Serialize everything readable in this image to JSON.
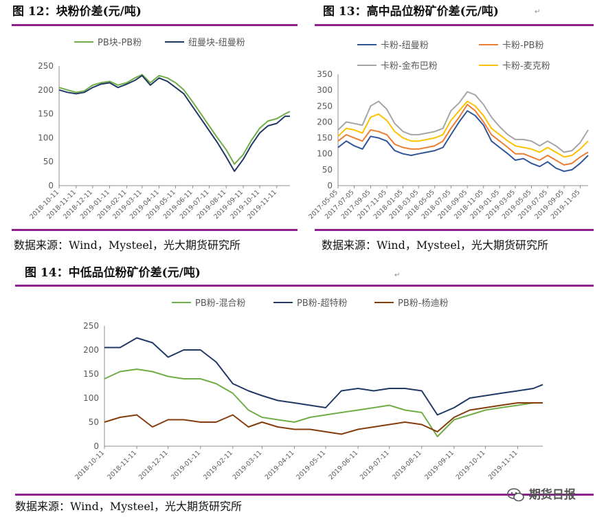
{
  "figures": {
    "fig12": {
      "title": "图 12：块粉价差(元/吨)"
    },
    "fig13": {
      "title": "图 13：高中品位粉矿价差(元/吨)"
    },
    "fig14": {
      "title": "图 14：中低品位粉矿价差(元/吨)"
    }
  },
  "sources": {
    "left": "数据来源：Wind，Mysteel，光大期货研究所",
    "right": "数据来源：Wind，Mysteel，光大期货研究所",
    "bottom": "数据来源：Wind，Mysteel，光大期货研究所"
  },
  "watermark": {
    "text": "期货日报",
    "icon": "wechat-icon"
  },
  "colors": {
    "rule": "#8e1f8e"
  },
  "chart_data": [
    {
      "id": "fig12",
      "type": "line",
      "title": "",
      "xlabel": "",
      "ylabel": "",
      "ylim": [
        0,
        250
      ],
      "yticks": [
        0,
        50,
        100,
        150,
        200,
        250
      ],
      "grid": false,
      "legend": "top",
      "xticks": [
        "2018-10-11",
        "2018-11-11",
        "2018-12-11",
        "2019-01-11",
        "2019-02-11",
        "2019-03-11",
        "2019-04-11",
        "2019-05-11",
        "2019-06-11",
        "2019-07-11",
        "2019-08-11",
        "2019-09-11",
        "2019-10-11",
        "2019-11-11"
      ],
      "x": [
        "2018-10-11",
        "2018-10-26",
        "2018-11-11",
        "2018-11-26",
        "2018-12-11",
        "2018-12-26",
        "2019-01-11",
        "2019-01-26",
        "2019-02-11",
        "2019-02-26",
        "2019-03-11",
        "2019-03-26",
        "2019-04-11",
        "2019-04-26",
        "2019-05-11",
        "2019-05-26",
        "2019-06-11",
        "2019-06-26",
        "2019-07-11",
        "2019-07-26",
        "2019-08-11",
        "2019-08-26",
        "2019-09-11",
        "2019-09-26",
        "2019-10-11",
        "2019-10-26",
        "2019-11-11",
        "2019-11-26",
        "2019-12-05"
      ],
      "series": [
        {
          "name": "PB块-PB粉",
          "color": "#70ad47",
          "values": [
            205,
            200,
            195,
            198,
            210,
            215,
            218,
            210,
            215,
            225,
            232,
            215,
            230,
            225,
            215,
            200,
            175,
            150,
            125,
            100,
            75,
            45,
            65,
            95,
            120,
            135,
            140,
            150,
            155
          ]
        },
        {
          "name": "纽曼块-纽曼粉",
          "color": "#203864",
          "values": [
            200,
            195,
            192,
            195,
            205,
            212,
            215,
            205,
            212,
            220,
            230,
            210,
            225,
            218,
            205,
            192,
            165,
            140,
            115,
            90,
            60,
            30,
            55,
            85,
            110,
            125,
            130,
            145,
            145
          ]
        }
      ]
    },
    {
      "id": "fig13",
      "type": "line",
      "title": "",
      "xlabel": "",
      "ylabel": "",
      "ylim": [
        0,
        350
      ],
      "yticks": [
        0,
        50,
        100,
        150,
        200,
        250,
        300,
        350
      ],
      "grid": false,
      "legend": "top",
      "xticks": [
        "2017-05-05",
        "2017-07-05",
        "2017-09-05",
        "2017-11-05",
        "2018-01-05",
        "2018-03-05",
        "2018-05-05",
        "2018-07-05",
        "2018-09-05",
        "2018-11-05",
        "2019-01-05",
        "2019-03-05",
        "2019-05-05",
        "2019-07-05",
        "2019-09-05",
        "2019-11-05"
      ],
      "x": [
        "2017-05-05",
        "2017-06-05",
        "2017-07-05",
        "2017-08-05",
        "2017-09-05",
        "2017-10-05",
        "2017-11-05",
        "2017-12-05",
        "2018-01-05",
        "2018-02-05",
        "2018-03-05",
        "2018-04-05",
        "2018-05-05",
        "2018-06-05",
        "2018-07-05",
        "2018-08-05",
        "2018-09-05",
        "2018-10-05",
        "2018-11-05",
        "2018-12-05",
        "2019-01-05",
        "2019-02-05",
        "2019-03-05",
        "2019-04-05",
        "2019-05-05",
        "2019-06-05",
        "2019-07-05",
        "2019-08-05",
        "2019-09-05",
        "2019-10-05",
        "2019-11-05",
        "2019-12-05"
      ],
      "series": [
        {
          "name": "卡粉-纽曼粉",
          "color": "#2f5597",
          "values": [
            120,
            140,
            125,
            115,
            155,
            150,
            140,
            110,
            100,
            95,
            100,
            105,
            110,
            120,
            160,
            200,
            235,
            220,
            190,
            140,
            120,
            100,
            80,
            85,
            70,
            60,
            75,
            55,
            45,
            50,
            70,
            95
          ]
        },
        {
          "name": "卡粉-PB粉",
          "color": "#ed7d31",
          "values": [
            140,
            160,
            150,
            140,
            175,
            170,
            160,
            130,
            120,
            115,
            115,
            120,
            125,
            140,
            180,
            215,
            255,
            235,
            200,
            160,
            140,
            120,
            100,
            100,
            90,
            80,
            95,
            80,
            65,
            70,
            90,
            105
          ]
        },
        {
          "name": "卡粉-金布巴粉",
          "color": "#a5a5a5",
          "values": [
            175,
            200,
            195,
            190,
            250,
            265,
            240,
            195,
            170,
            160,
            160,
            165,
            170,
            180,
            235,
            260,
            295,
            285,
            255,
            215,
            185,
            160,
            145,
            145,
            140,
            125,
            140,
            125,
            105,
            110,
            135,
            175
          ]
        },
        {
          "name": "卡粉-麦克粉",
          "color": "#ffc000",
          "values": [
            155,
            180,
            175,
            165,
            215,
            225,
            205,
            170,
            150,
            140,
            140,
            145,
            150,
            160,
            205,
            235,
            265,
            250,
            220,
            180,
            160,
            140,
            125,
            120,
            115,
            105,
            120,
            105,
            90,
            95,
            115,
            140
          ]
        }
      ]
    },
    {
      "id": "fig14",
      "type": "line",
      "title": "",
      "xlabel": "",
      "ylabel": "",
      "ylim": [
        0,
        250
      ],
      "yticks": [
        0,
        50,
        100,
        150,
        200,
        250
      ],
      "grid": false,
      "legend": "top",
      "xticks": [
        "2018-10-11",
        "2018-11-11",
        "2018-12-11",
        "2019-01-11",
        "2019-02-11",
        "2019-03-11",
        "2019-04-11",
        "2019-05-11",
        "2019-06-11",
        "2019-07-11",
        "2019-08-11",
        "2019-09-11",
        "2019-10-11",
        "2019-11-11"
      ],
      "x": [
        "2018-10-11",
        "2018-10-26",
        "2018-11-11",
        "2018-11-26",
        "2018-12-11",
        "2018-12-26",
        "2019-01-11",
        "2019-01-26",
        "2019-02-11",
        "2019-02-26",
        "2019-03-11",
        "2019-03-26",
        "2019-04-11",
        "2019-04-26",
        "2019-05-11",
        "2019-05-26",
        "2019-06-11",
        "2019-06-26",
        "2019-07-11",
        "2019-07-26",
        "2019-08-11",
        "2019-08-26",
        "2019-09-11",
        "2019-09-26",
        "2019-10-11",
        "2019-10-26",
        "2019-11-11",
        "2019-11-26",
        "2019-12-05"
      ],
      "series": [
        {
          "name": "PB粉-混合粉",
          "color": "#70ad47",
          "values": [
            140,
            155,
            160,
            155,
            145,
            140,
            140,
            130,
            110,
            75,
            60,
            55,
            50,
            60,
            65,
            70,
            75,
            80,
            85,
            75,
            70,
            20,
            55,
            65,
            75,
            80,
            85,
            90,
            90
          ]
        },
        {
          "name": "PB粉-超特粉",
          "color": "#203864",
          "values": [
            205,
            205,
            225,
            215,
            185,
            200,
            200,
            175,
            130,
            115,
            105,
            95,
            90,
            85,
            80,
            115,
            120,
            115,
            120,
            120,
            115,
            65,
            80,
            100,
            105,
            110,
            115,
            120,
            128
          ]
        },
        {
          "name": "PB粉-杨迪粉",
          "color": "#843c0c",
          "values": [
            50,
            60,
            65,
            40,
            55,
            55,
            50,
            50,
            65,
            40,
            50,
            40,
            35,
            35,
            30,
            25,
            35,
            40,
            45,
            50,
            45,
            30,
            60,
            75,
            80,
            85,
            90,
            90,
            90
          ]
        }
      ]
    }
  ]
}
